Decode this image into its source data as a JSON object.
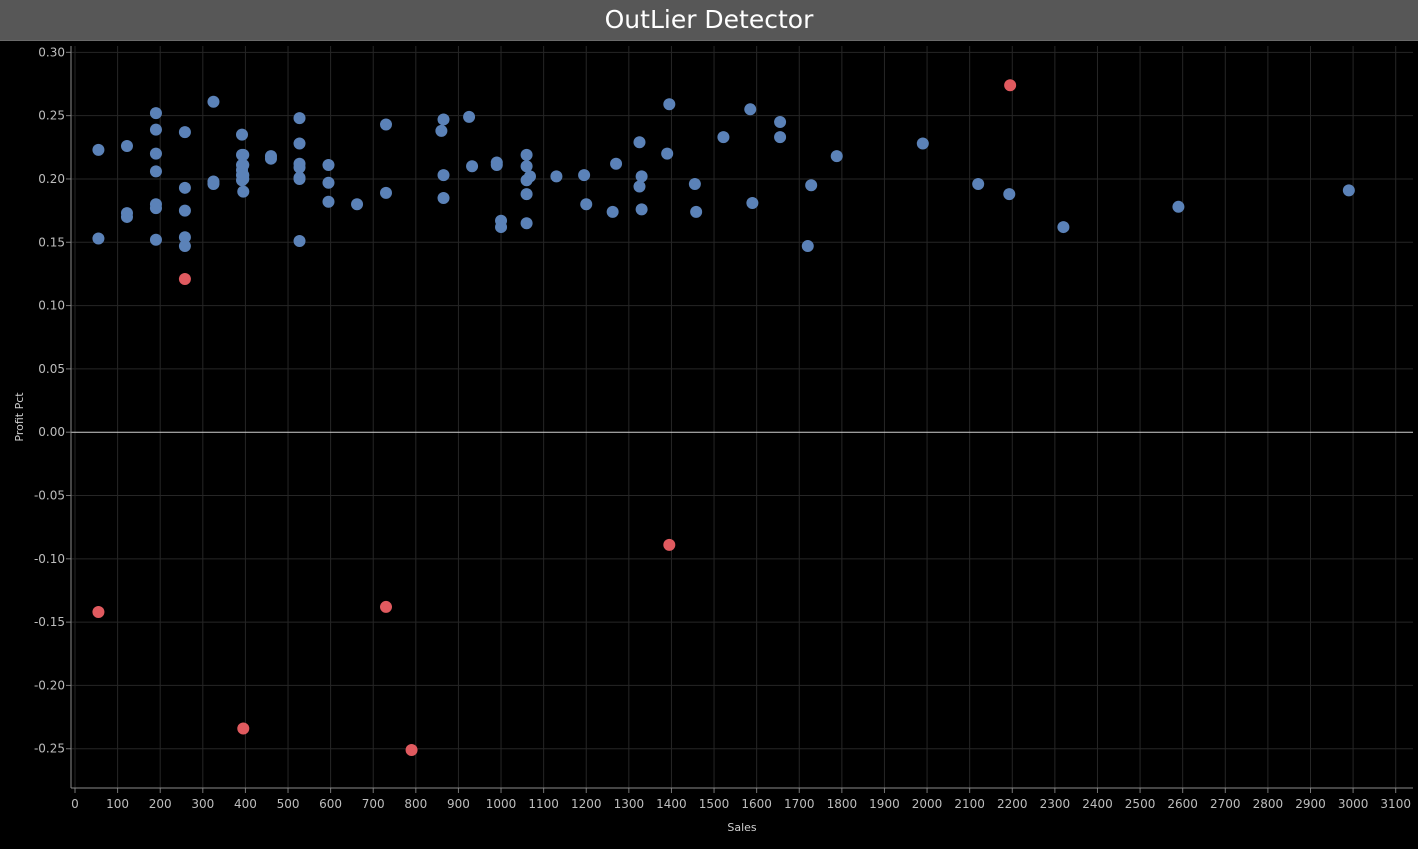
{
  "header": {
    "title": "OutLier Detector"
  },
  "colors": {
    "background": "#000000",
    "header_background": "#575757",
    "gridline": "#262626",
    "zero_line": "#cfcfcf",
    "normal_point": "#5b82b8",
    "outlier_point": "#e05a5f"
  },
  "chart_data": {
    "type": "scatter",
    "xlabel": "Sales",
    "ylabel": "Profit Pct",
    "xlim": [
      0,
      3150
    ],
    "ylim": [
      -0.281,
      0.305
    ],
    "x_ticks": [
      0,
      100,
      200,
      300,
      400,
      500,
      600,
      700,
      800,
      900,
      1000,
      1100,
      1200,
      1300,
      1400,
      1500,
      1600,
      1700,
      1800,
      1900,
      2000,
      2100,
      2200,
      2300,
      2400,
      2500,
      2600,
      2700,
      2800,
      2900,
      3000,
      3100
    ],
    "y_ticks": [
      0.3,
      0.25,
      0.2,
      0.15,
      0.1,
      0.05,
      0.0,
      -0.05,
      -0.1,
      -0.15,
      -0.2,
      -0.25
    ],
    "y_tick_labels": [
      "0.30",
      "0.25",
      "0.20",
      "0.15",
      "0.10",
      "0.05",
      "0.00",
      "-0.05",
      "-0.10",
      "-0.15",
      "-0.20",
      "-0.25"
    ],
    "grid": true,
    "legend": "none",
    "series": [
      {
        "color": "#5b82b8",
        "points": [
          [
            55,
            0.223
          ],
          [
            55,
            0.153
          ],
          [
            122,
            0.226
          ],
          [
            122,
            0.173
          ],
          [
            122,
            0.17
          ],
          [
            190,
            0.252
          ],
          [
            190,
            0.239
          ],
          [
            190,
            0.22
          ],
          [
            190,
            0.206
          ],
          [
            190,
            0.18
          ],
          [
            190,
            0.177
          ],
          [
            190,
            0.152
          ],
          [
            258,
            0.237
          ],
          [
            258,
            0.193
          ],
          [
            258,
            0.175
          ],
          [
            258,
            0.154
          ],
          [
            258,
            0.147
          ],
          [
            325,
            0.261
          ],
          [
            325,
            0.198
          ],
          [
            325,
            0.196
          ],
          [
            392,
            0.235
          ],
          [
            392,
            0.219
          ],
          [
            392,
            0.211
          ],
          [
            392,
            0.207
          ],
          [
            392,
            0.203
          ],
          [
            392,
            0.199
          ],
          [
            395,
            0.219
          ],
          [
            395,
            0.211
          ],
          [
            395,
            0.203
          ],
          [
            395,
            0.2
          ],
          [
            395,
            0.19
          ],
          [
            460,
            0.218
          ],
          [
            460,
            0.216
          ],
          [
            527,
            0.248
          ],
          [
            527,
            0.228
          ],
          [
            527,
            0.212
          ],
          [
            527,
            0.209
          ],
          [
            527,
            0.201
          ],
          [
            527,
            0.2
          ],
          [
            527,
            0.151
          ],
          [
            595,
            0.211
          ],
          [
            595,
            0.197
          ],
          [
            595,
            0.182
          ],
          [
            662,
            0.18
          ],
          [
            730,
            0.243
          ],
          [
            730,
            0.189
          ],
          [
            860,
            0.238
          ],
          [
            865,
            0.247
          ],
          [
            865,
            0.203
          ],
          [
            865,
            0.185
          ],
          [
            925,
            0.249
          ],
          [
            932,
            0.21
          ],
          [
            990,
            0.213
          ],
          [
            990,
            0.211
          ],
          [
            1000,
            0.167
          ],
          [
            1000,
            0.162
          ],
          [
            1060,
            0.219
          ],
          [
            1060,
            0.21
          ],
          [
            1060,
            0.199
          ],
          [
            1060,
            0.188
          ],
          [
            1060,
            0.165
          ],
          [
            1068,
            0.202
          ],
          [
            1130,
            0.202
          ],
          [
            1195,
            0.203
          ],
          [
            1200,
            0.18
          ],
          [
            1262,
            0.174
          ],
          [
            1270,
            0.212
          ],
          [
            1325,
            0.229
          ],
          [
            1325,
            0.194
          ],
          [
            1330,
            0.202
          ],
          [
            1330,
            0.176
          ],
          [
            1390,
            0.22
          ],
          [
            1395,
            0.259
          ],
          [
            1455,
            0.196
          ],
          [
            1458,
            0.174
          ],
          [
            1522,
            0.233
          ],
          [
            1590,
            0.181
          ],
          [
            1585,
            0.255
          ],
          [
            1655,
            0.245
          ],
          [
            1655,
            0.233
          ],
          [
            1720,
            0.147
          ],
          [
            1728,
            0.195
          ],
          [
            1788,
            0.218
          ],
          [
            1990,
            0.228
          ],
          [
            2120,
            0.196
          ],
          [
            2193,
            0.188
          ],
          [
            2320,
            0.162
          ],
          [
            2590,
            0.178
          ],
          [
            2990,
            0.191
          ]
        ]
      },
      {
        "color": "#e05a5f",
        "points": [
          [
            258,
            0.121
          ],
          [
            2195,
            0.274
          ],
          [
            1395,
            -0.089
          ],
          [
            55,
            -0.142
          ],
          [
            730,
            -0.138
          ],
          [
            395,
            -0.234
          ],
          [
            790,
            -0.251
          ]
        ]
      }
    ]
  }
}
